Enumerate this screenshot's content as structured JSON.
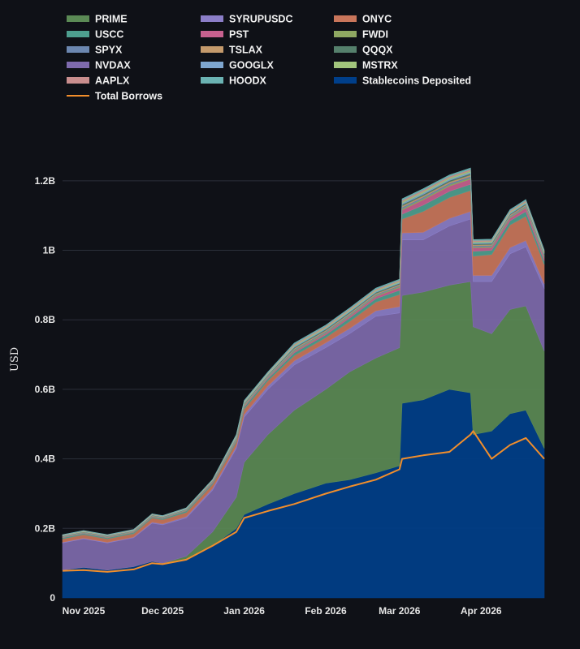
{
  "chart_data": {
    "type": "area",
    "stacked": true,
    "ylabel": "USD",
    "ylim": [
      0,
      1300000000
    ],
    "yticks": [
      {
        "value": 0,
        "label": "0"
      },
      {
        "value": 200000000,
        "label": "0.2B"
      },
      {
        "value": 400000000,
        "label": "0.4B"
      },
      {
        "value": 600000000,
        "label": "0.6B"
      },
      {
        "value": 800000000,
        "label": "0.8B"
      },
      {
        "value": 1000000000,
        "label": "1B"
      },
      {
        "value": 1200000000,
        "label": "1.2B"
      }
    ],
    "xlim": [
      "2025-10-24",
      "2026-04-25"
    ],
    "xticks": [
      {
        "value": "2025-11-01",
        "label": "Nov 2025"
      },
      {
        "value": "2025-12-01",
        "label": "Dec 2025"
      },
      {
        "value": "2026-01-01",
        "label": "Jan 2026"
      },
      {
        "value": "2026-02-01",
        "label": "Feb 2026"
      },
      {
        "value": "2026-03-01",
        "label": "Mar 2026"
      },
      {
        "value": "2026-04-01",
        "label": "Apr 2026"
      }
    ],
    "grid": true,
    "legend_position": "top",
    "legend_order": [
      "PRIME",
      "SYRUPUSDC",
      "ONYC",
      "USCC",
      "PST",
      "FWDI",
      "SPYX",
      "TSLAX",
      "QQQX",
      "NVDAX",
      "GOOGLX",
      "MSTRX",
      "AAPLX",
      "HOODX",
      "Stablecoins Deposited",
      "Total Borrows"
    ],
    "x": [
      "2025-10-24",
      "2025-11-01",
      "2025-11-10",
      "2025-11-20",
      "2025-11-27",
      "2025-12-01",
      "2025-12-10",
      "2025-12-20",
      "2025-12-29",
      "2026-01-01",
      "2026-01-10",
      "2026-01-20",
      "2026-02-01",
      "2026-02-10",
      "2026-02-20",
      "2026-03-01",
      "2026-03-02",
      "2026-03-10",
      "2026-03-20",
      "2026-03-28",
      "2026-03-29",
      "2026-04-05",
      "2026-04-12",
      "2026-04-18",
      "2026-04-25"
    ],
    "series": [
      {
        "name": "Stablecoins Deposited",
        "color": "#003f8a",
        "values": [
          80,
          88,
          80,
          90,
          105,
          100,
          110,
          150,
          200,
          240,
          270,
          300,
          330,
          340,
          360,
          380,
          560,
          570,
          600,
          590,
          470,
          480,
          530,
          540,
          430
        ]
      },
      {
        "name": "PRIME",
        "color": "#5b8a55",
        "values": [
          0,
          0,
          0,
          0,
          0,
          0,
          10,
          40,
          90,
          150,
          200,
          240,
          270,
          310,
          330,
          340,
          310,
          310,
          300,
          320,
          310,
          280,
          300,
          300,
          280
        ]
      },
      {
        "name": "NVDAX",
        "color": "#7e6aad",
        "values": [
          78,
          82,
          78,
          83,
          110,
          110,
          110,
          120,
          140,
          130,
          130,
          130,
          120,
          110,
          120,
          100,
          160,
          150,
          170,
          180,
          130,
          150,
          160,
          170,
          180
        ]
      },
      {
        "name": "SYRUPUSDC",
        "color": "#8b7ec8",
        "values": [
          2,
          2,
          2,
          2,
          3,
          3,
          4,
          5,
          6,
          8,
          10,
          12,
          14,
          15,
          16,
          18,
          20,
          22,
          22,
          22,
          18,
          18,
          18,
          18,
          14
        ]
      },
      {
        "name": "ONYC",
        "color": "#c9765b",
        "values": [
          10,
          10,
          10,
          10,
          12,
          12,
          12,
          12,
          12,
          15,
          15,
          15,
          15,
          20,
          25,
          35,
          40,
          60,
          60,
          60,
          55,
          60,
          65,
          70,
          55
        ]
      },
      {
        "name": "USCC",
        "color": "#4e9f8f",
        "values": [
          3,
          3,
          3,
          3,
          3,
          3,
          4,
          4,
          4,
          6,
          6,
          8,
          8,
          10,
          10,
          12,
          14,
          18,
          18,
          18,
          14,
          12,
          12,
          14,
          10
        ]
      },
      {
        "name": "PST",
        "color": "#c7618f",
        "values": [
          1,
          1,
          1,
          1,
          1,
          1,
          1,
          2,
          2,
          3,
          3,
          4,
          4,
          5,
          6,
          8,
          12,
          15,
          15,
          15,
          10,
          8,
          8,
          10,
          8
        ]
      },
      {
        "name": "FWDI",
        "color": "#8fa862",
        "values": [
          1,
          1,
          1,
          1,
          1,
          1,
          1,
          1,
          2,
          2,
          2,
          3,
          3,
          3,
          3,
          3,
          4,
          4,
          4,
          4,
          3,
          3,
          3,
          3,
          3
        ]
      },
      {
        "name": "SPYX",
        "color": "#6c87b0",
        "values": [
          1,
          1,
          1,
          1,
          1,
          1,
          1,
          1,
          2,
          2,
          2,
          3,
          3,
          3,
          3,
          3,
          4,
          4,
          4,
          4,
          3,
          3,
          3,
          3,
          3
        ]
      },
      {
        "name": "TSLAX",
        "color": "#c49a6c",
        "values": [
          1,
          1,
          1,
          1,
          1,
          1,
          1,
          1,
          2,
          2,
          2,
          3,
          3,
          3,
          3,
          3,
          4,
          4,
          4,
          4,
          3,
          3,
          3,
          3,
          3
        ]
      },
      {
        "name": "QQQX",
        "color": "#55806c",
        "values": [
          1,
          1,
          1,
          1,
          1,
          1,
          1,
          1,
          2,
          2,
          2,
          3,
          3,
          3,
          3,
          3,
          4,
          4,
          4,
          4,
          3,
          3,
          3,
          3,
          3
        ]
      },
      {
        "name": "GOOGLX",
        "color": "#7ea6cf",
        "values": [
          1,
          1,
          1,
          1,
          1,
          1,
          1,
          1,
          2,
          2,
          2,
          3,
          3,
          3,
          3,
          3,
          4,
          4,
          4,
          4,
          3,
          3,
          3,
          3,
          3
        ]
      },
      {
        "name": "MSTRX",
        "color": "#a2c57c",
        "values": [
          1,
          1,
          1,
          1,
          1,
          1,
          1,
          1,
          2,
          2,
          2,
          3,
          3,
          3,
          3,
          3,
          4,
          4,
          4,
          4,
          3,
          3,
          3,
          3,
          3
        ]
      },
      {
        "name": "AAPLX",
        "color": "#c98e8e",
        "values": [
          1,
          1,
          1,
          1,
          1,
          1,
          1,
          1,
          2,
          2,
          2,
          3,
          3,
          3,
          3,
          3,
          4,
          4,
          4,
          4,
          3,
          3,
          3,
          3,
          3
        ]
      },
      {
        "name": "HOODX",
        "color": "#6bb3b3",
        "values": [
          1,
          1,
          1,
          1,
          1,
          1,
          1,
          1,
          2,
          2,
          2,
          3,
          3,
          3,
          3,
          3,
          4,
          4,
          4,
          4,
          3,
          3,
          3,
          3,
          3
        ]
      }
    ],
    "line_series": [
      {
        "name": "Total Borrows",
        "color": "#f28e2b",
        "values": [
          78,
          80,
          75,
          82,
          100,
          97,
          110,
          150,
          190,
          230,
          250,
          270,
          300,
          320,
          340,
          370,
          400,
          410,
          420,
          470,
          480,
          400,
          440,
          460,
          400
        ]
      }
    ],
    "value_unit": "millions USD"
  }
}
